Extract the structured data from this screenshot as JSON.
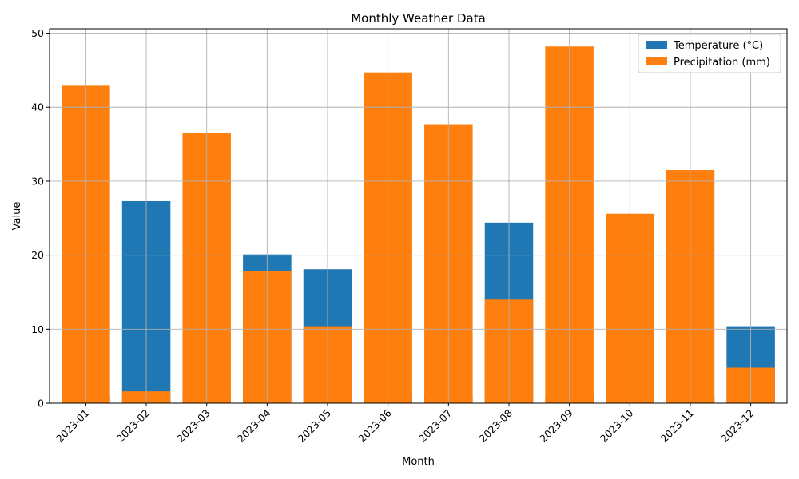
{
  "chart_data": {
    "type": "bar",
    "title": "Monthly Weather Data",
    "xlabel": "Month",
    "ylabel": "Value",
    "categories": [
      "2023-01",
      "2023-02",
      "2023-03",
      "2023-04",
      "2023-05",
      "2023-06",
      "2023-07",
      "2023-08",
      "2023-09",
      "2023-10",
      "2023-11",
      "2023-12"
    ],
    "ylim": [
      0,
      50.6
    ],
    "yticks": [
      0,
      10,
      20,
      30,
      40,
      50
    ],
    "grid": true,
    "legend_position": "top-right",
    "x_tick_rotation": 45,
    "bar_mode": "overlay",
    "series": [
      {
        "name": "Temperature (°C)",
        "color": "#1f77b4",
        "values": [
          1.0,
          27.3,
          1.0,
          20.1,
          18.1,
          1.0,
          1.0,
          24.4,
          1.0,
          1.0,
          1.0,
          10.4
        ]
      },
      {
        "name": "Precipitation (mm)",
        "color": "#ff7f0e",
        "values": [
          42.9,
          1.6,
          36.5,
          17.9,
          10.4,
          44.7,
          37.7,
          14.0,
          48.2,
          25.6,
          31.5,
          4.8
        ]
      }
    ]
  }
}
